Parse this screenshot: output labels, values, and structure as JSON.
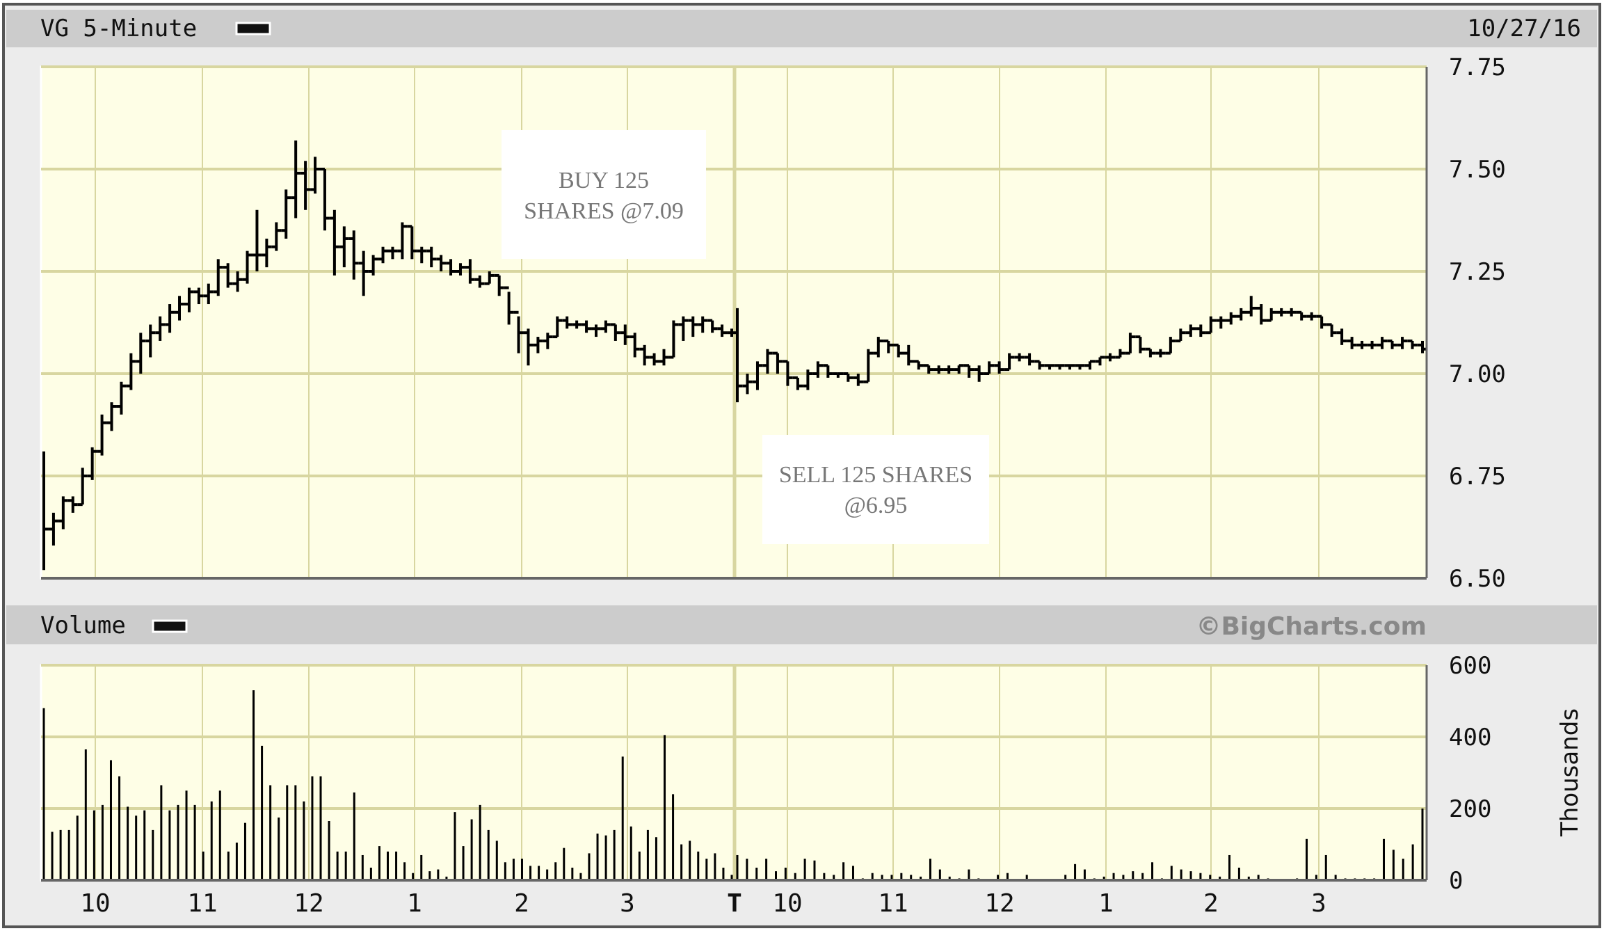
{
  "header": {
    "title": "VG 5-Minute",
    "date": "10/27/16"
  },
  "volume_header": {
    "title": "Volume",
    "watermark": "©BigCharts.com"
  },
  "colors": {
    "plot_bg": "#fefee6",
    "grid": "#d8d6a0",
    "bar": "#000000",
    "panel": "#ececec",
    "header_bar": "#cccccc",
    "annotation_text": "#777777"
  },
  "annotations": {
    "buy": {
      "line1": "BUY 125",
      "line2": "SHARES @7.09"
    },
    "sell": {
      "line1": "SELL 125 SHARES",
      "line2": "@6.95"
    }
  },
  "chart_data": [
    {
      "type": "ohlc",
      "title": "VG 5-Minute",
      "ylim": [
        6.5,
        7.75
      ],
      "y_ticks": [
        "7.75",
        "7.50",
        "7.25",
        "7.00",
        "6.75",
        "6.50"
      ],
      "x_tick_labels": [
        "10",
        "11",
        "12",
        "1",
        "2",
        "3",
        "T",
        "10",
        "11",
        "12",
        "1",
        "2",
        "3"
      ],
      "grid": true,
      "bar_format": [
        "high",
        "low",
        "close"
      ],
      "days": [
        [
          [
            6.81,
            6.52,
            6.62
          ],
          [
            6.66,
            6.58,
            6.64
          ],
          [
            6.7,
            6.62,
            6.69
          ],
          [
            6.7,
            6.66,
            6.68
          ],
          [
            6.77,
            6.68,
            6.75
          ],
          [
            6.82,
            6.74,
            6.81
          ],
          [
            6.9,
            6.8,
            6.88
          ],
          [
            6.93,
            6.86,
            6.92
          ],
          [
            6.98,
            6.9,
            6.97
          ],
          [
            7.05,
            6.96,
            7.03
          ],
          [
            7.1,
            7.0,
            7.08
          ],
          [
            7.12,
            7.04,
            7.1
          ],
          [
            7.14,
            7.08,
            7.12
          ],
          [
            7.17,
            7.1,
            7.15
          ],
          [
            7.19,
            7.13,
            7.17
          ],
          [
            7.21,
            7.15,
            7.2
          ],
          [
            7.21,
            7.17,
            7.19
          ],
          [
            7.22,
            7.17,
            7.2
          ],
          [
            7.28,
            7.19,
            7.26
          ],
          [
            7.27,
            7.21,
            7.22
          ],
          [
            7.25,
            7.2,
            7.23
          ],
          [
            7.3,
            7.22,
            7.29
          ],
          [
            7.4,
            7.25,
            7.29
          ],
          [
            7.33,
            7.26,
            7.31
          ],
          [
            7.37,
            7.3,
            7.35
          ],
          [
            7.45,
            7.33,
            7.43
          ],
          [
            7.57,
            7.38,
            7.49
          ],
          [
            7.52,
            7.4,
            7.45
          ],
          [
            7.53,
            7.44,
            7.5
          ],
          [
            7.5,
            7.35,
            7.38
          ],
          [
            7.4,
            7.24,
            7.31
          ],
          [
            7.36,
            7.26,
            7.33
          ],
          [
            7.35,
            7.23,
            7.27
          ],
          [
            7.3,
            7.19,
            7.25
          ],
          [
            7.29,
            7.24,
            7.28
          ],
          [
            7.31,
            7.27,
            7.3
          ],
          [
            7.31,
            7.28,
            7.3
          ],
          [
            7.37,
            7.28,
            7.36
          ],
          [
            7.36,
            7.28,
            7.3
          ],
          [
            7.31,
            7.27,
            7.3
          ],
          [
            7.31,
            7.26,
            7.28
          ],
          [
            7.29,
            7.25,
            7.27
          ],
          [
            7.28,
            7.24,
            7.25
          ],
          [
            7.27,
            7.24,
            7.26
          ],
          [
            7.28,
            7.22,
            7.23
          ],
          [
            7.24,
            7.21,
            7.22
          ],
          [
            7.25,
            7.22,
            7.24
          ],
          [
            7.24,
            7.19,
            7.21
          ],
          [
            7.2,
            7.12,
            7.15
          ],
          [
            7.14,
            7.05,
            7.1
          ],
          [
            7.11,
            7.02,
            7.07
          ],
          [
            7.09,
            7.05,
            7.08
          ],
          [
            7.1,
            7.06,
            7.09
          ],
          [
            7.14,
            7.09,
            7.13
          ],
          [
            7.14,
            7.11,
            7.12
          ],
          [
            7.13,
            7.11,
            7.12
          ],
          [
            7.13,
            7.1,
            7.11
          ],
          [
            7.12,
            7.09,
            7.11
          ],
          [
            7.13,
            7.1,
            7.12
          ],
          [
            7.12,
            7.08,
            7.1
          ],
          [
            7.12,
            7.07,
            7.09
          ],
          [
            7.1,
            7.04,
            7.06
          ],
          [
            7.07,
            7.02,
            7.04
          ],
          [
            7.05,
            7.02,
            7.03
          ],
          [
            7.06,
            7.02,
            7.04
          ],
          [
            7.13,
            7.04,
            7.12
          ],
          [
            7.14,
            7.08,
            7.13
          ],
          [
            7.14,
            7.09,
            7.12
          ],
          [
            7.14,
            7.1,
            7.13
          ],
          [
            7.13,
            7.1,
            7.11
          ],
          [
            7.12,
            7.09,
            7.1
          ],
          [
            7.11,
            7.09,
            7.1
          ]
        ],
        [
          [
            7.16,
            6.93,
            6.97
          ],
          [
            7.0,
            6.95,
            6.98
          ],
          [
            7.03,
            6.96,
            7.02
          ],
          [
            7.06,
            7.0,
            7.05
          ],
          [
            7.05,
            7.0,
            7.03
          ],
          [
            7.03,
            6.97,
            6.99
          ],
          [
            6.99,
            6.96,
            6.97
          ],
          [
            7.01,
            6.96,
            7.0
          ],
          [
            7.03,
            6.99,
            7.02
          ],
          [
            7.02,
            6.99,
            7.0
          ],
          [
            7.0,
            6.99,
            7.0
          ],
          [
            7.0,
            6.98,
            6.99
          ],
          [
            7.0,
            6.97,
            6.98
          ],
          [
            7.06,
            6.98,
            7.05
          ],
          [
            7.09,
            7.04,
            7.08
          ],
          [
            7.08,
            7.05,
            7.07
          ],
          [
            7.07,
            7.04,
            7.05
          ],
          [
            7.07,
            7.02,
            7.03
          ],
          [
            7.03,
            7.01,
            7.02
          ],
          [
            7.02,
            7.0,
            7.01
          ],
          [
            7.02,
            7.0,
            7.01
          ],
          [
            7.02,
            7.0,
            7.01
          ],
          [
            7.02,
            7.0,
            7.02
          ],
          [
            7.02,
            6.99,
            7.01
          ],
          [
            7.02,
            6.98,
            7.0
          ],
          [
            7.03,
            7.0,
            7.02
          ],
          [
            7.03,
            7.0,
            7.01
          ],
          [
            7.05,
            7.01,
            7.04
          ],
          [
            7.05,
            7.03,
            7.04
          ],
          [
            7.05,
            7.02,
            7.03
          ],
          [
            7.03,
            7.01,
            7.02
          ],
          [
            7.02,
            7.01,
            7.02
          ],
          [
            7.02,
            7.01,
            7.02
          ],
          [
            7.02,
            7.01,
            7.02
          ],
          [
            7.02,
            7.01,
            7.02
          ],
          [
            7.03,
            7.01,
            7.03
          ],
          [
            7.04,
            7.02,
            7.04
          ],
          [
            7.05,
            7.03,
            7.04
          ],
          [
            7.06,
            7.04,
            7.05
          ],
          [
            7.1,
            7.05,
            7.09
          ],
          [
            7.09,
            7.05,
            7.06
          ],
          [
            7.06,
            7.04,
            7.05
          ],
          [
            7.06,
            7.04,
            7.05
          ],
          [
            7.09,
            7.05,
            7.08
          ],
          [
            7.11,
            7.08,
            7.1
          ],
          [
            7.12,
            7.09,
            7.11
          ],
          [
            7.12,
            7.09,
            7.1
          ],
          [
            7.14,
            7.1,
            7.13
          ],
          [
            7.14,
            7.11,
            7.13
          ],
          [
            7.15,
            7.12,
            7.14
          ],
          [
            7.16,
            7.13,
            7.15
          ],
          [
            7.19,
            7.14,
            7.16
          ],
          [
            7.17,
            7.12,
            7.13
          ],
          [
            7.16,
            7.13,
            7.15
          ],
          [
            7.16,
            7.14,
            7.15
          ],
          [
            7.16,
            7.14,
            7.15
          ],
          [
            7.15,
            7.13,
            7.14
          ],
          [
            7.15,
            7.13,
            7.14
          ],
          [
            7.14,
            7.11,
            7.12
          ],
          [
            7.12,
            7.09,
            7.1
          ],
          [
            7.11,
            7.07,
            7.08
          ],
          [
            7.09,
            7.06,
            7.07
          ],
          [
            7.08,
            7.06,
            7.07
          ],
          [
            7.08,
            7.06,
            7.07
          ],
          [
            7.09,
            7.06,
            7.08
          ],
          [
            7.08,
            7.06,
            7.07
          ],
          [
            7.09,
            7.06,
            7.08
          ],
          [
            7.08,
            7.06,
            7.07
          ],
          [
            7.08,
            7.05,
            7.06
          ]
        ]
      ]
    },
    {
      "type": "bar",
      "title": "Volume",
      "ylabel": "Thousands",
      "ylim": [
        0,
        600
      ],
      "y_ticks": [
        "600",
        "400",
        "200",
        "0"
      ],
      "grid": true,
      "days": [
        [
          480,
          135,
          140,
          140,
          180,
          365,
          195,
          210,
          335,
          290,
          205,
          180,
          195,
          140,
          265,
          195,
          210,
          250,
          210,
          80,
          220,
          250,
          80,
          105,
          160,
          530,
          375,
          265,
          175,
          265,
          265,
          220,
          290,
          290,
          165,
          80,
          80,
          245,
          70,
          35,
          95,
          80,
          80,
          50,
          20,
          70,
          25,
          30,
          10,
          190,
          95,
          170,
          210,
          140,
          110,
          50,
          60,
          60,
          40,
          40,
          30,
          50,
          90,
          35,
          20,
          75,
          130,
          125,
          140,
          345,
          150,
          80,
          140,
          120,
          405,
          240,
          100,
          110,
          80,
          60,
          75,
          35,
          15
        ],
        [
          70,
          60,
          35,
          60,
          25,
          35,
          20,
          60,
          55,
          20,
          15,
          50,
          40,
          5,
          20,
          15,
          15,
          20,
          15,
          10,
          60,
          30,
          10,
          5,
          30,
          5,
          3,
          15,
          20,
          3,
          15,
          3,
          3,
          3,
          15,
          45,
          30,
          5,
          10,
          20,
          15,
          25,
          20,
          50,
          5,
          40,
          30,
          25,
          20,
          15,
          10,
          70,
          35,
          10,
          15,
          5,
          3,
          3,
          5,
          115,
          15,
          70,
          15,
          5,
          5,
          5,
          5,
          115,
          85,
          60,
          100,
          200
        ]
      ]
    }
  ]
}
